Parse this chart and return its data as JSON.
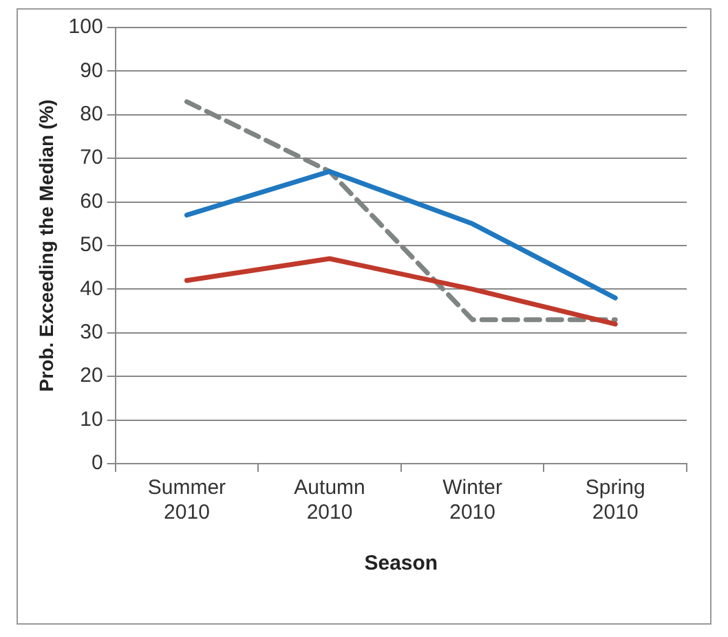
{
  "chart_data": {
    "type": "line",
    "xlabel": "Season",
    "ylabel": "Prob. Exceeding the Median (%)",
    "categories": [
      "Summer 2010",
      "Autumn 2010",
      "Winter 2010",
      "Spring 2010"
    ],
    "series": [
      {
        "color": "#1f78c0",
        "values": [
          57,
          67,
          55,
          38
        ]
      },
      {
        "color": "#c0392b",
        "values": [
          42,
          47,
          40,
          32
        ]
      },
      {
        "color": "#7f8582",
        "values": [
          83,
          67,
          33,
          33
        ],
        "line_style": "dashed"
      }
    ],
    "ylim": [
      0,
      100
    ],
    "yticks": [
      0,
      10,
      20,
      30,
      40,
      50,
      60,
      70,
      80,
      90,
      100
    ],
    "grid": "y",
    "legend": false,
    "marker": "none"
  }
}
